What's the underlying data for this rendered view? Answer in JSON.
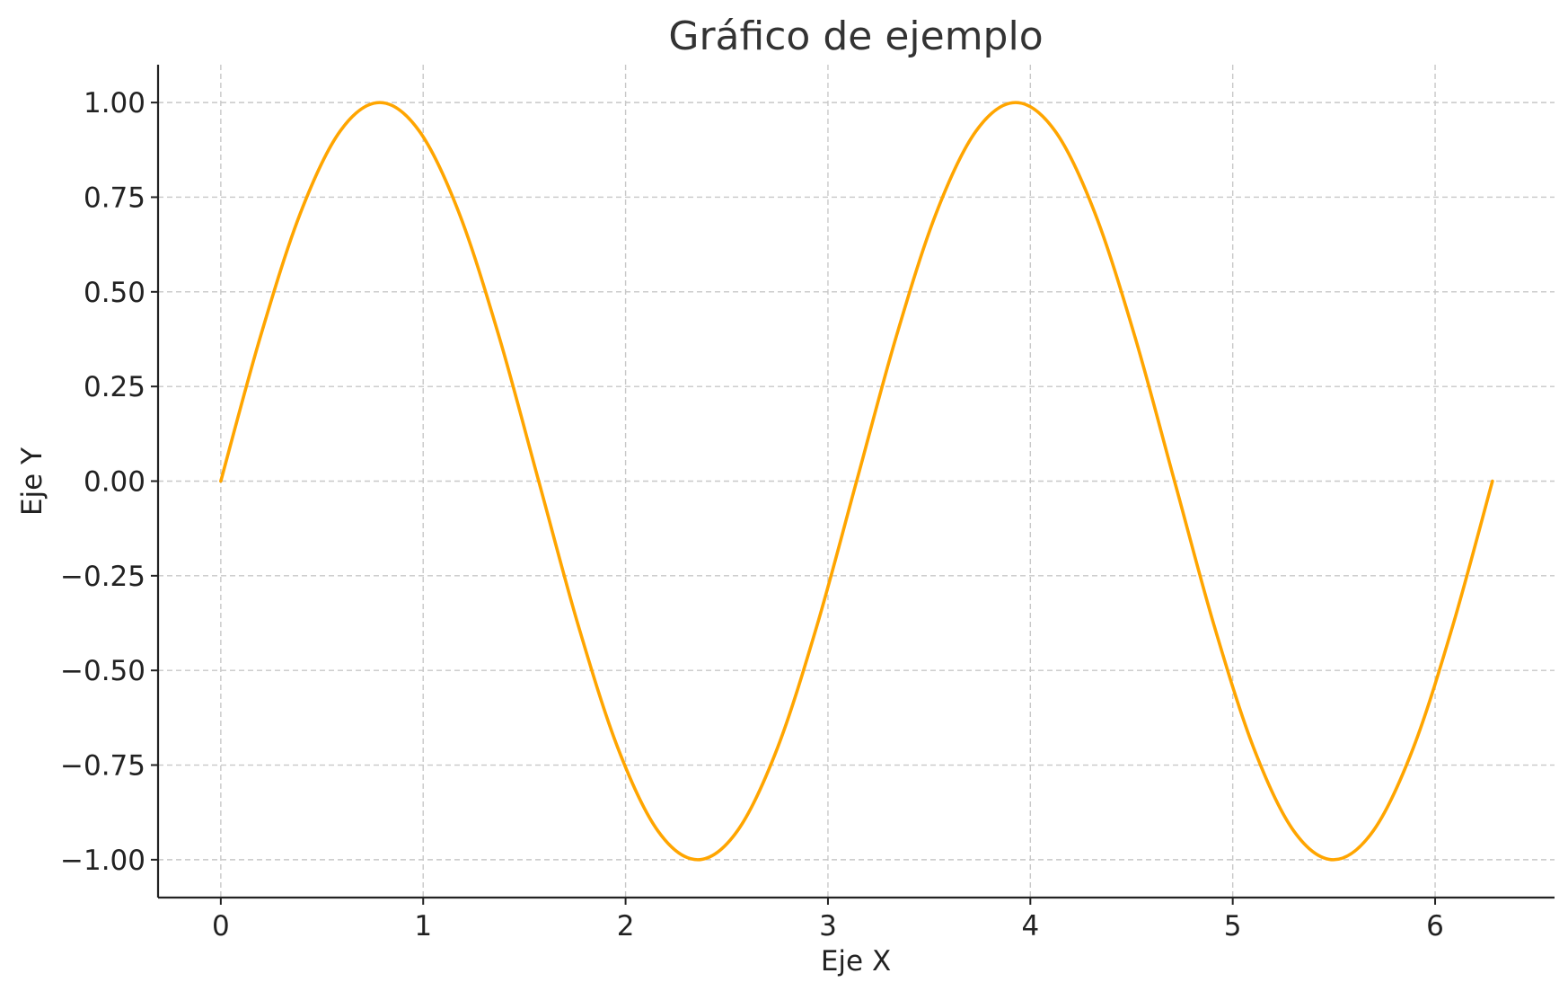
{
  "chart_data": {
    "type": "line",
    "title": "Gráfico de ejemplo",
    "xlabel": "Eje X",
    "ylabel": "Eje Y",
    "xlim": [
      -0.31,
      6.59
    ],
    "ylim": [
      -1.1,
      1.1
    ],
    "xticks": [
      0,
      1,
      2,
      3,
      4,
      5,
      6
    ],
    "xtick_labels": [
      "0",
      "1",
      "2",
      "3",
      "4",
      "5",
      "6"
    ],
    "yticks": [
      1.0,
      0.75,
      0.5,
      0.25,
      0.0,
      -0.25,
      -0.5,
      -0.75,
      -1.0
    ],
    "ytick_labels": [
      "1.00",
      "0.75",
      "0.50",
      "0.25",
      "0.00",
      "−0.25",
      "−0.50",
      "−0.75",
      "−1.00"
    ],
    "grid": true,
    "series": [
      {
        "color": "#FFA500",
        "x": [
          0.0,
          0.1963,
          0.3927,
          0.589,
          0.7854,
          0.9817,
          1.1781,
          1.3744,
          1.5708,
          1.7671,
          1.9635,
          2.1598,
          2.3562,
          2.5525,
          2.7489,
          2.9452,
          3.1416,
          3.3379,
          3.5343,
          3.7306,
          3.927,
          4.1233,
          4.3197,
          4.516,
          4.7124,
          4.9087,
          5.1051,
          5.3014,
          5.4978,
          5.6941,
          5.8905,
          6.0868,
          6.2832
        ],
        "y": [
          0.0,
          0.3827,
          0.7071,
          0.9239,
          1.0,
          0.9239,
          0.7071,
          0.3827,
          0.0,
          -0.3827,
          -0.7071,
          -0.9239,
          -1.0,
          -0.9239,
          -0.7071,
          -0.3827,
          0.0,
          0.3827,
          0.7071,
          0.9239,
          1.0,
          0.9239,
          0.7071,
          0.3827,
          0.0,
          -0.3827,
          -0.7071,
          -0.9239,
          -1.0,
          -0.9239,
          -0.7071,
          -0.3827,
          0.0
        ]
      }
    ]
  }
}
